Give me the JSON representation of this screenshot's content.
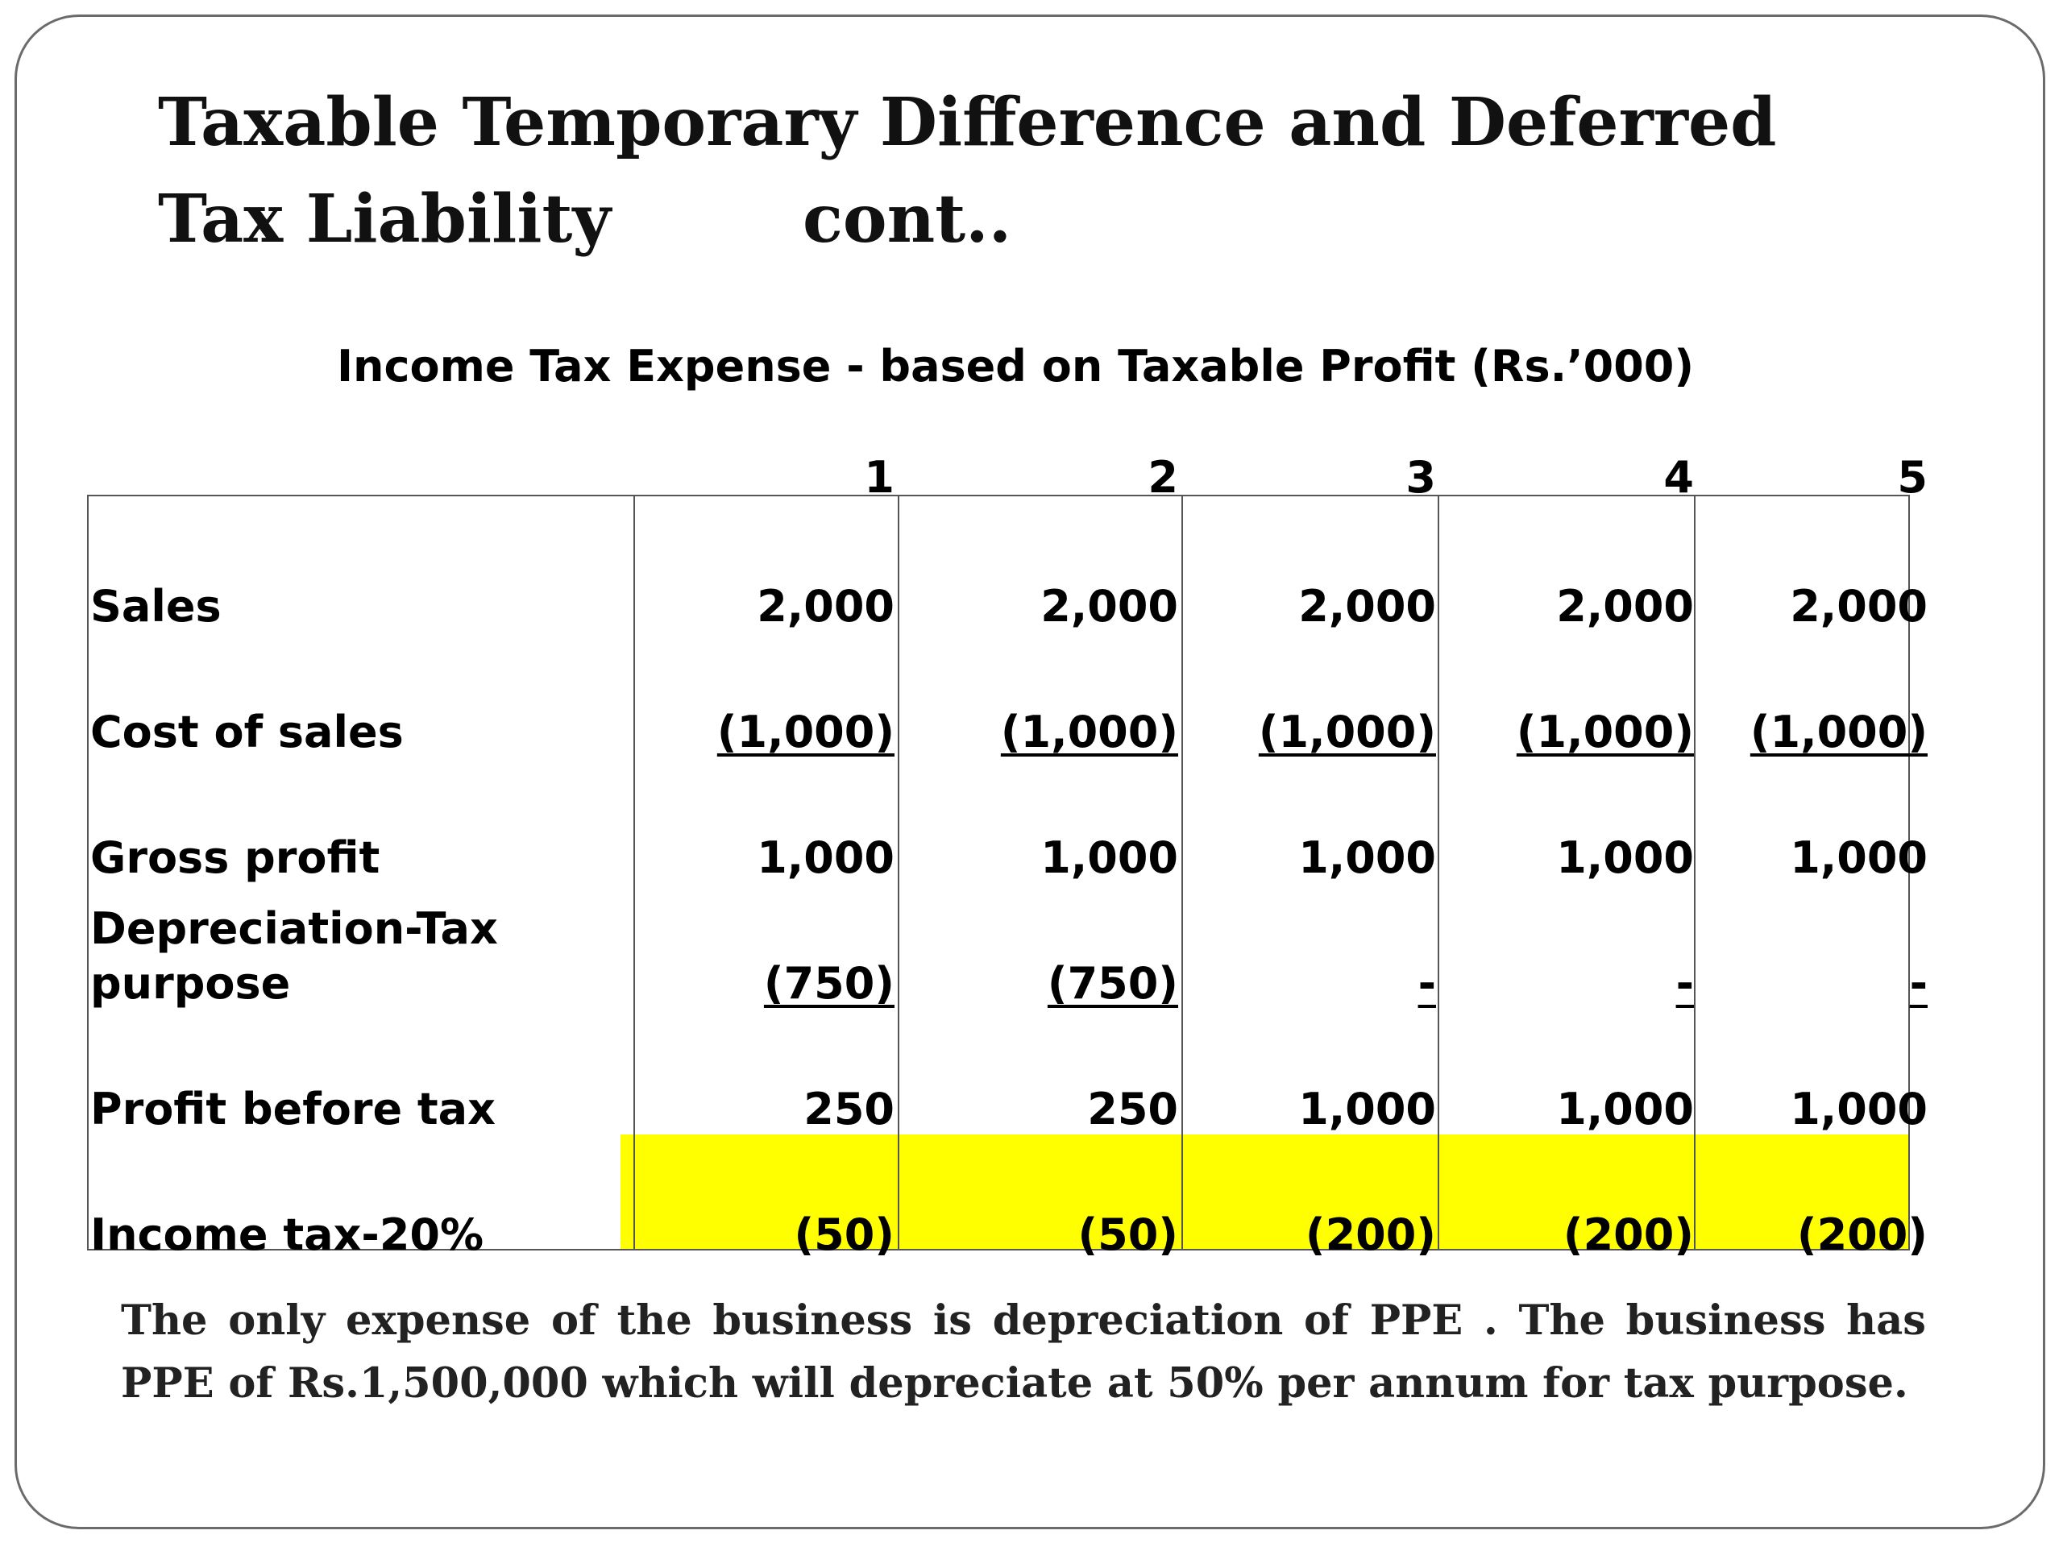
{
  "slide": {
    "title_line1": "Taxable Temporary Difference and Deferred",
    "title_line2a": "Tax Liability",
    "title_line2b": "cont..",
    "table_title": "Income Tax Expense - based on Taxable Profit (Rs.’000)",
    "table": {
      "years": [
        "1",
        "2",
        "3",
        "4",
        "5"
      ],
      "rows": [
        {
          "label": "Sales",
          "values": [
            "2,000",
            "2,000",
            "2,000",
            "2,000",
            "2,000"
          ]
        },
        {
          "label": "Cost of sales",
          "values": [
            "(1,000)",
            "(1,000)",
            "(1,000)",
            "(1,000)",
            "(1,000)"
          ]
        },
        {
          "label": "Gross profit",
          "values": [
            "1,000",
            "1,000",
            "1,000",
            "1,000",
            "1,000"
          ]
        },
        {
          "label_line1": "Depreciation-Tax",
          "label_line2": "purpose",
          "values": [
            "(750)",
            "(750)",
            "-",
            "-",
            "-"
          ]
        },
        {
          "label": "Profit before tax",
          "values": [
            "250",
            "250",
            "1,000",
            "1,000",
            "1,000"
          ]
        },
        {
          "label": "Income tax-20%",
          "values": [
            "(50)",
            "(50)",
            "(200)",
            "(200)",
            "(200)"
          ]
        }
      ]
    },
    "note": "The only expense of the business is depreciation of PPE . The business has PPE of Rs.1,500,000 which will depreciate at 50% per annum for tax purpose."
  },
  "colors": {
    "highlight": "#ffff00",
    "border": "#555555"
  }
}
